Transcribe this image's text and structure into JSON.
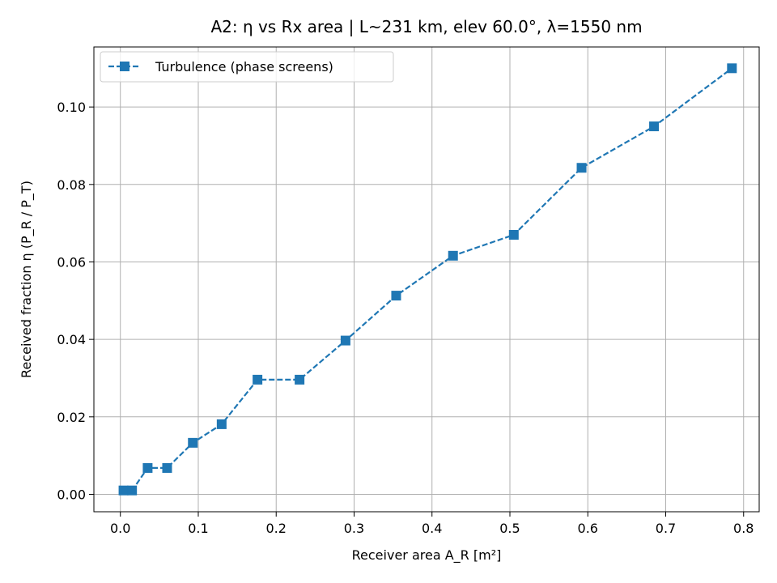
{
  "chart_data": {
    "type": "line",
    "title": "A2: η vs Rx area  |  L~231 km, elev 60.0°, λ=1550 nm",
    "xlabel": "Receiver area A_R [m²]",
    "ylabel": "Received fraction η (P_R / P_T)",
    "xlim": [
      -0.034,
      0.82
    ],
    "ylim": [
      -0.0045,
      0.1155
    ],
    "xticks": [
      0.0,
      0.1,
      0.2,
      0.3,
      0.4,
      0.5,
      0.6,
      0.7,
      0.8
    ],
    "xtick_labels": [
      "0.0",
      "0.1",
      "0.2",
      "0.3",
      "0.4",
      "0.5",
      "0.6",
      "0.7",
      "0.8"
    ],
    "yticks": [
      0.0,
      0.02,
      0.04,
      0.06,
      0.08,
      0.1
    ],
    "ytick_labels": [
      "0.00",
      "0.02",
      "0.04",
      "0.06",
      "0.08",
      "0.10"
    ],
    "grid": true,
    "legend_position": "top-left",
    "series": [
      {
        "name": "Turbulence (phase screens)",
        "color": "#1f77b4",
        "line_style": "dashed",
        "marker": "square",
        "x": [
          0.004,
          0.015,
          0.035,
          0.06,
          0.093,
          0.13,
          0.176,
          0.23,
          0.289,
          0.354,
          0.427,
          0.505,
          0.592,
          0.685,
          0.785
        ],
        "y": [
          0.001,
          0.001,
          0.0068,
          0.0068,
          0.0133,
          0.0181,
          0.0296,
          0.0296,
          0.0397,
          0.0513,
          0.0616,
          0.067,
          0.0843,
          0.095,
          0.11
        ]
      }
    ]
  }
}
